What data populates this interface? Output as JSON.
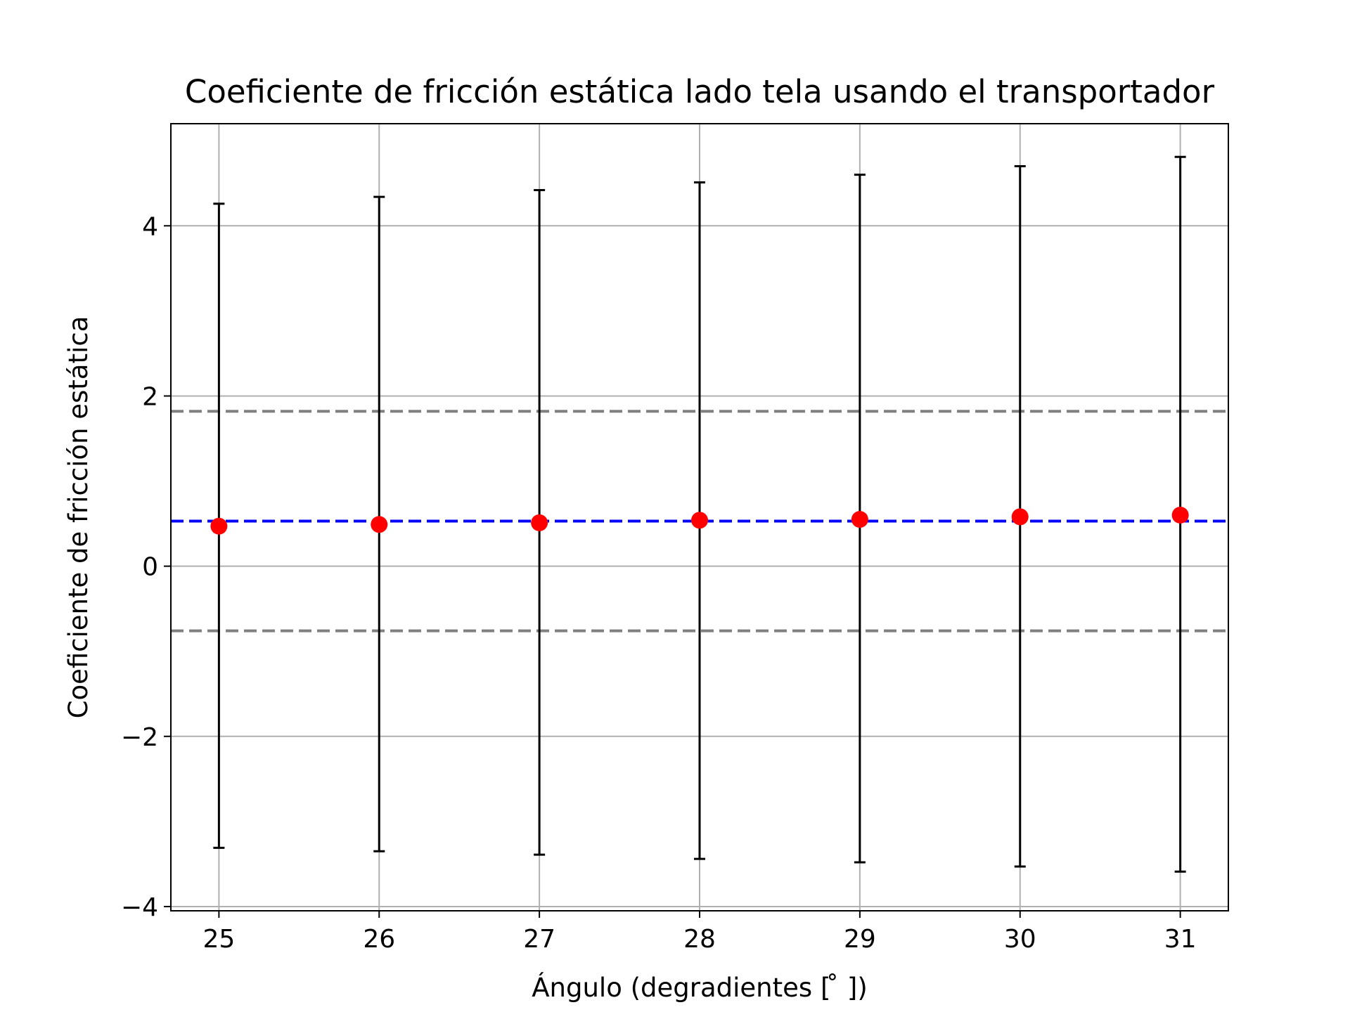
{
  "chart_data": {
    "type": "scatter",
    "title": "Coeficiente de fricción estática lado tela usando el transportador",
    "xlabel": "Ángulo (degradientes [$^\\circ$])",
    "xlabel_display": "Ángulo (degradientes [ ̊ ])",
    "ylabel": "Coeficiente de fricción estática",
    "xlim": [
      24.7,
      31.3
    ],
    "ylim": [
      -4.05,
      5.2
    ],
    "grid": true,
    "x_ticks": [
      25,
      26,
      27,
      28,
      29,
      30,
      31
    ],
    "x_tick_labels": [
      "25",
      "26",
      "27",
      "28",
      "29",
      "30",
      "31"
    ],
    "y_ticks": [
      -4,
      -2,
      0,
      2,
      4
    ],
    "y_tick_labels": [
      "−4",
      "−2",
      "0",
      "2",
      "4"
    ],
    "series": [
      {
        "x": [
          25,
          26,
          27,
          28,
          29,
          30,
          31
        ],
        "y": [
          0.47,
          0.49,
          0.51,
          0.54,
          0.55,
          0.58,
          0.6
        ],
        "yerr_low": [
          -3.31,
          -3.35,
          -3.39,
          -3.44,
          -3.48,
          -3.53,
          -3.59
        ],
        "yerr_high": [
          4.26,
          4.34,
          4.42,
          4.51,
          4.6,
          4.7,
          4.81
        ],
        "marker_color": "#ff0000",
        "errorbar_color": "#000000"
      }
    ],
    "hlines": [
      {
        "y": 0.53,
        "style": "dashed",
        "color": "#0000ff"
      },
      {
        "y": 1.82,
        "style": "dashed",
        "color": "#808080"
      },
      {
        "y": -0.76,
        "style": "dashed",
        "color": "#808080"
      }
    ]
  }
}
